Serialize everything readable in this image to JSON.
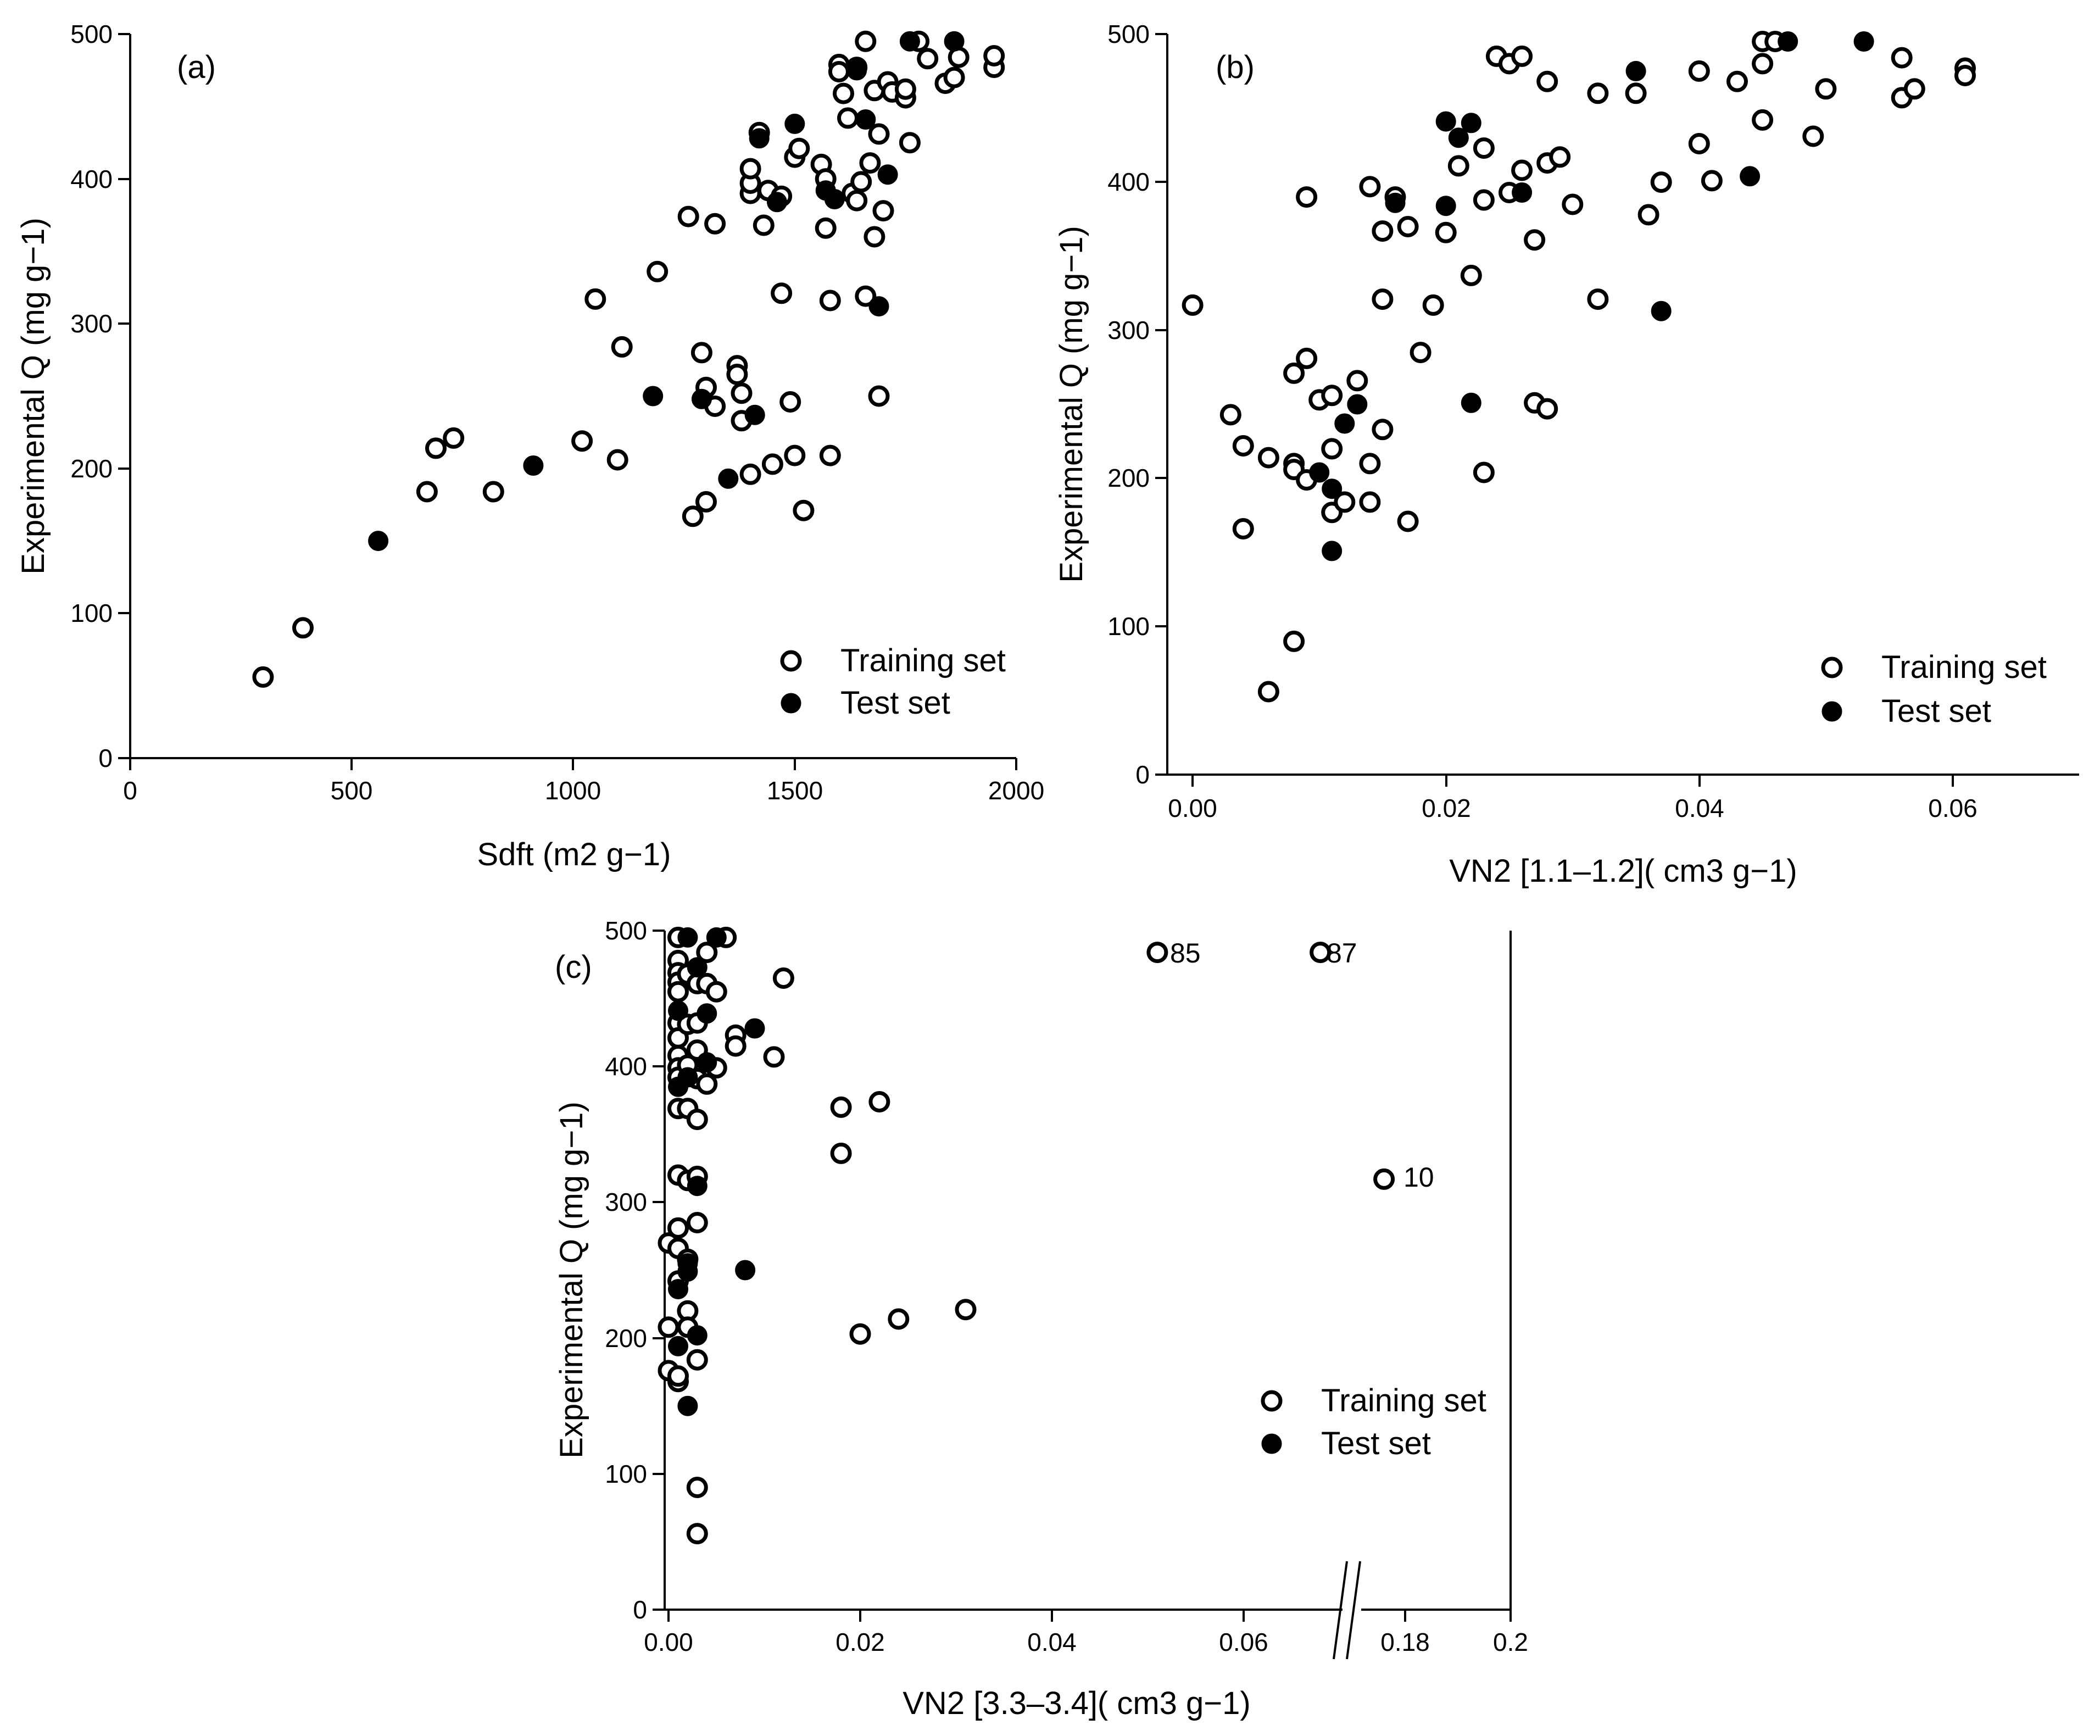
{
  "colors": {
    "ink": "#000000",
    "paper": "#ffffff"
  },
  "legend": {
    "training": "Training set",
    "test": "Test set"
  },
  "chart_data": [
    {
      "type": "scatter",
      "panel": "(a)",
      "ylabel": "Experimental Q (mg g−1)",
      "xlabel": "Sdft (m2 g−1)",
      "xlim": [
        0,
        2000
      ],
      "ylim": [
        0,
        500
      ],
      "xticks": [
        "0",
        "500",
        "1000",
        "1500",
        "2000"
      ],
      "yticks": [
        "0",
        "100",
        "200",
        "300",
        "400",
        "500"
      ],
      "legend_position": "bottom-right",
      "series": [
        {
          "name": "Training set",
          "points": [
            [
              300,
              56
            ],
            [
              390,
              90
            ],
            [
              670,
              184
            ],
            [
              690,
              214
            ],
            [
              730,
              221
            ],
            [
              820,
              184
            ],
            [
              1020,
              219
            ],
            [
              1050,
              317
            ],
            [
              1100,
              206
            ],
            [
              1110,
              284
            ],
            [
              1190,
              336
            ],
            [
              1260,
              374
            ],
            [
              1270,
              167
            ],
            [
              1290,
              280
            ],
            [
              1300,
              177
            ],
            [
              1300,
              256
            ],
            [
              1320,
              243
            ],
            [
              1320,
              369
            ],
            [
              1370,
              271
            ],
            [
              1370,
              265
            ],
            [
              1380,
              233
            ],
            [
              1380,
              252
            ],
            [
              1400,
              196
            ],
            [
              1400,
              390
            ],
            [
              1400,
              397
            ],
            [
              1400,
              407
            ],
            [
              1420,
              432
            ],
            [
              1430,
              368
            ],
            [
              1440,
              392
            ],
            [
              1450,
              203
            ],
            [
              1470,
              321
            ],
            [
              1470,
              388
            ],
            [
              1490,
              246
            ],
            [
              1500,
              415
            ],
            [
              1500,
              209
            ],
            [
              1510,
              421
            ],
            [
              1520,
              171
            ],
            [
              1560,
              410
            ],
            [
              1570,
              366
            ],
            [
              1570,
              400
            ],
            [
              1580,
              316
            ],
            [
              1580,
              209
            ],
            [
              1600,
              479
            ],
            [
              1600,
              474
            ],
            [
              1610,
              459
            ],
            [
              1620,
              442
            ],
            [
              1630,
              390
            ],
            [
              1640,
              385
            ],
            [
              1640,
              477
            ],
            [
              1650,
              398
            ],
            [
              1660,
              495
            ],
            [
              1660,
              319
            ],
            [
              1670,
              411
            ],
            [
              1680,
              461
            ],
            [
              1680,
              360
            ],
            [
              1690,
              431
            ],
            [
              1690,
              250
            ],
            [
              1700,
              378
            ],
            [
              1710,
              467
            ],
            [
              1720,
              460
            ],
            [
              1750,
              456
            ],
            [
              1750,
              462
            ],
            [
              1760,
              425
            ],
            [
              1780,
              495
            ],
            [
              1800,
              483
            ],
            [
              1840,
              466
            ],
            [
              1860,
              470
            ],
            [
              1870,
              484
            ],
            [
              1950,
              477
            ],
            [
              1950,
              485
            ]
          ]
        },
        {
          "name": "Test set",
          "points": [
            [
              560,
              150
            ],
            [
              910,
              202
            ],
            [
              1180,
              250
            ],
            [
              1290,
              248
            ],
            [
              1350,
              193
            ],
            [
              1410,
              237
            ],
            [
              1420,
              428
            ],
            [
              1460,
              384
            ],
            [
              1500,
              438
            ],
            [
              1570,
              392
            ],
            [
              1590,
              386
            ],
            [
              1640,
              475
            ],
            [
              1660,
              441
            ],
            [
              1690,
              312
            ],
            [
              1710,
              403
            ],
            [
              1760,
              495
            ],
            [
              1860,
              495
            ]
          ]
        }
      ]
    },
    {
      "type": "scatter",
      "panel": "(b)",
      "ylabel": "Experimental Q (mg g−1)",
      "xlabel": "VN2 [1.1–1.2]( cm3 g−1)",
      "xlim": [
        -0.002,
        0.07
      ],
      "ylim": [
        0,
        500
      ],
      "xticks": [
        "0.00",
        "0.02",
        "0.04",
        "0.06"
      ],
      "yticks": [
        "0",
        "100",
        "200",
        "300",
        "400",
        "500"
      ],
      "legend_position": "bottom-right",
      "series": [
        {
          "name": "Training set",
          "points": [
            [
              0.0,
              317
            ],
            [
              0.003,
              243
            ],
            [
              0.004,
              166
            ],
            [
              0.004,
              222
            ],
            [
              0.006,
              214
            ],
            [
              0.006,
              56
            ],
            [
              0.008,
              271
            ],
            [
              0.008,
              210
            ],
            [
              0.008,
              206
            ],
            [
              0.008,
              90
            ],
            [
              0.009,
              281
            ],
            [
              0.009,
              390
            ],
            [
              0.009,
              199
            ],
            [
              0.01,
              253
            ],
            [
              0.011,
              256
            ],
            [
              0.011,
              177
            ],
            [
              0.011,
              220
            ],
            [
              0.012,
              184
            ],
            [
              0.013,
              266
            ],
            [
              0.014,
              397
            ],
            [
              0.014,
              210
            ],
            [
              0.014,
              184
            ],
            [
              0.015,
              321
            ],
            [
              0.015,
              233
            ],
            [
              0.015,
              367
            ],
            [
              0.016,
              390
            ],
            [
              0.017,
              370
            ],
            [
              0.017,
              171
            ],
            [
              0.018,
              285
            ],
            [
              0.019,
              317
            ],
            [
              0.02,
              366
            ],
            [
              0.021,
              411
            ],
            [
              0.022,
              337
            ],
            [
              0.023,
              423
            ],
            [
              0.023,
              388
            ],
            [
              0.023,
              204
            ],
            [
              0.024,
              485
            ],
            [
              0.025,
              480
            ],
            [
              0.025,
              393
            ],
            [
              0.026,
              485
            ],
            [
              0.026,
              408
            ],
            [
              0.027,
              361
            ],
            [
              0.027,
              251
            ],
            [
              0.028,
              468
            ],
            [
              0.028,
              247
            ],
            [
              0.028,
              413
            ],
            [
              0.029,
              417
            ],
            [
              0.03,
              385
            ],
            [
              0.032,
              460
            ],
            [
              0.032,
              321
            ],
            [
              0.035,
              460
            ],
            [
              0.036,
              378
            ],
            [
              0.037,
              400
            ],
            [
              0.04,
              475
            ],
            [
              0.04,
              426
            ],
            [
              0.041,
              401
            ],
            [
              0.043,
              468
            ],
            [
              0.045,
              495
            ],
            [
              0.045,
              480
            ],
            [
              0.045,
              442
            ],
            [
              0.046,
              495
            ],
            [
              0.049,
              431
            ],
            [
              0.05,
              463
            ],
            [
              0.056,
              484
            ],
            [
              0.056,
              457
            ],
            [
              0.057,
              463
            ],
            [
              0.061,
              477
            ],
            [
              0.061,
              472
            ]
          ]
        },
        {
          "name": "Test set",
          "points": [
            [
              0.01,
              204
            ],
            [
              0.011,
              193
            ],
            [
              0.011,
              151
            ],
            [
              0.012,
              237
            ],
            [
              0.013,
              250
            ],
            [
              0.016,
              386
            ],
            [
              0.02,
              441
            ],
            [
              0.02,
              384
            ],
            [
              0.021,
              430
            ],
            [
              0.022,
              440
            ],
            [
              0.022,
              251
            ],
            [
              0.026,
              393
            ],
            [
              0.035,
              475
            ],
            [
              0.037,
              313
            ],
            [
              0.044,
              404
            ],
            [
              0.047,
              495
            ],
            [
              0.053,
              495
            ]
          ]
        }
      ]
    },
    {
      "type": "scatter",
      "panel": "(c)",
      "ylabel": "Experimental Q (mg g−1)",
      "xlabel": "VN2 [3.3–3.4]( cm3 g−1)",
      "xlim": [
        -0.001,
        0.2
      ],
      "x_break": [
        0.07,
        0.17
      ],
      "ylim": [
        0,
        500
      ],
      "xticks": [
        "0.00",
        "0.02",
        "0.04",
        "0.06",
        "0.18",
        "0.2"
      ],
      "yticks": [
        "0",
        "100",
        "200",
        "300",
        "400",
        "500"
      ],
      "legend_position": "bottom-right",
      "annotations": [
        {
          "label": "85",
          "x": 0.051,
          "y": 484
        },
        {
          "label": "87",
          "x": 0.068,
          "y": 484
        },
        {
          "label": "10",
          "x": 0.176,
          "y": 317
        }
      ],
      "series": [
        {
          "name": "Training set",
          "points": [
            [
              0.0,
              270
            ],
            [
              0.0,
              208
            ],
            [
              0.0,
              176
            ],
            [
              0.001,
              495
            ],
            [
              0.001,
              478
            ],
            [
              0.001,
              469
            ],
            [
              0.001,
              462
            ],
            [
              0.001,
              455
            ],
            [
              0.001,
              432
            ],
            [
              0.001,
              421
            ],
            [
              0.001,
              408
            ],
            [
              0.001,
              399
            ],
            [
              0.001,
              392
            ],
            [
              0.001,
              369
            ],
            [
              0.001,
              320
            ],
            [
              0.001,
              281
            ],
            [
              0.001,
              266
            ],
            [
              0.001,
              242
            ],
            [
              0.001,
              168
            ],
            [
              0.001,
              172
            ],
            [
              0.002,
              468
            ],
            [
              0.002,
              431
            ],
            [
              0.002,
              401
            ],
            [
              0.002,
              369
            ],
            [
              0.002,
              316
            ],
            [
              0.002,
              258
            ],
            [
              0.002,
              220
            ],
            [
              0.002,
              208
            ],
            [
              0.003,
              461
            ],
            [
              0.003,
              432
            ],
            [
              0.003,
              412
            ],
            [
              0.003,
              391
            ],
            [
              0.003,
              361
            ],
            [
              0.003,
              319
            ],
            [
              0.003,
              285
            ],
            [
              0.003,
              184
            ],
            [
              0.003,
              90
            ],
            [
              0.003,
              56
            ],
            [
              0.004,
              484
            ],
            [
              0.004,
              461
            ],
            [
              0.004,
              387
            ],
            [
              0.005,
              455
            ],
            [
              0.005,
              399
            ],
            [
              0.006,
              495
            ],
            [
              0.007,
              423
            ],
            [
              0.007,
              415
            ],
            [
              0.011,
              407
            ],
            [
              0.012,
              465
            ],
            [
              0.018,
              370
            ],
            [
              0.018,
              336
            ],
            [
              0.02,
              203
            ],
            [
              0.022,
              374
            ],
            [
              0.024,
              214
            ],
            [
              0.031,
              221
            ],
            [
              0.051,
              484
            ],
            [
              0.068,
              484
            ],
            [
              0.176,
              317
            ]
          ]
        },
        {
          "name": "Test set",
          "points": [
            [
              0.001,
              441
            ],
            [
              0.001,
              385
            ],
            [
              0.001,
              236
            ],
            [
              0.001,
              194
            ],
            [
              0.002,
              495
            ],
            [
              0.002,
              392
            ],
            [
              0.002,
              255
            ],
            [
              0.002,
              249
            ],
            [
              0.002,
              150
            ],
            [
              0.003,
              473
            ],
            [
              0.003,
              312
            ],
            [
              0.003,
              202
            ],
            [
              0.004,
              439
            ],
            [
              0.004,
              403
            ],
            [
              0.005,
              495
            ],
            [
              0.008,
              250
            ],
            [
              0.009,
              428
            ]
          ]
        }
      ]
    }
  ]
}
